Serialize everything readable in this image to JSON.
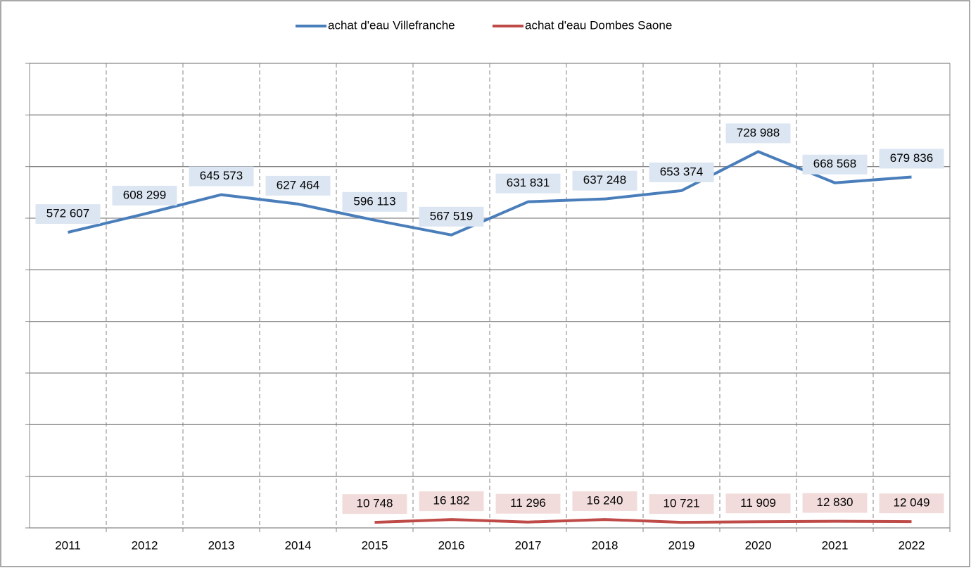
{
  "chart_data": {
    "type": "line",
    "categories": [
      "2011",
      "2012",
      "2013",
      "2014",
      "2015",
      "2016",
      "2017",
      "2018",
      "2019",
      "2020",
      "2021",
      "2022"
    ],
    "series": [
      {
        "name": "achat d'eau Villefranche",
        "color": "#4a7ebb",
        "values": [
          572607,
          608299,
          645573,
          627464,
          596113,
          567519,
          631831,
          637248,
          653374,
          728988,
          668568,
          679836
        ],
        "value_labels": [
          "572 607",
          "608 299",
          "645 573",
          "627 464",
          "596 113",
          "567 519",
          "631 831",
          "637 248",
          "653 374",
          "728 988",
          "668 568",
          "679 836"
        ],
        "label_color": "#dce6f2"
      },
      {
        "name": "achat d'eau Dombes Saone",
        "color": "#be4b48",
        "values": [
          null,
          null,
          null,
          null,
          10748,
          16182,
          11296,
          16240,
          10721,
          11909,
          12830,
          12049
        ],
        "value_labels": [
          null,
          null,
          null,
          null,
          "10 748",
          "16 182",
          "11 296",
          "16 240",
          "10 721",
          "11 909",
          "12 830",
          "12 049"
        ],
        "label_color": "#f2dcdb"
      }
    ],
    "ylim": [
      0,
      900000
    ],
    "yticks": [
      0,
      100000,
      200000,
      300000,
      400000,
      500000,
      600000,
      700000,
      800000,
      900000
    ],
    "grid": true,
    "legend": "top"
  }
}
